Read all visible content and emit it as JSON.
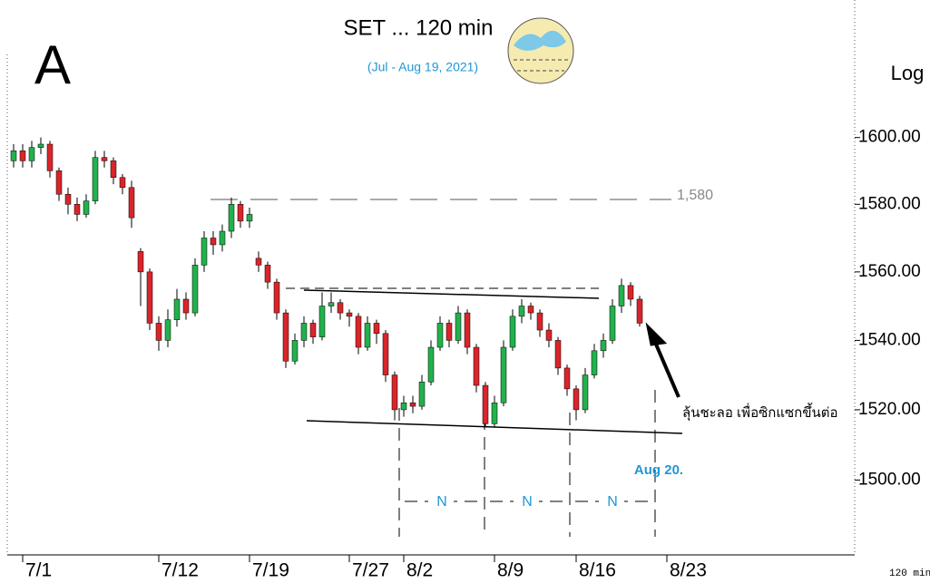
{
  "chart_data": {
    "type": "candlestick",
    "title": "SET ... 120 min",
    "subtitle": "(Jul - Aug 19, 2021)",
    "corner_label": "A",
    "scale_label": "Log",
    "level_label": "1,580",
    "note": "ลุ้นชะลอ เพื่อซิกแซกขึ้นต่อ",
    "date_note": "Aug 20.",
    "cycle_labels": [
      "N",
      "N",
      "N"
    ],
    "interval_label": "120 min",
    "log_scale": true,
    "up_color": "#22b14c",
    "down_color": "#d9252a",
    "ylim": [
      1479,
      1642
    ],
    "yticks": [
      {
        "value": 1500,
        "label": "1500.00"
      },
      {
        "value": 1520,
        "label": "1520.00"
      },
      {
        "value": 1540,
        "label": "1540.00"
      },
      {
        "value": 1560,
        "label": "1560.00"
      },
      {
        "value": 1580,
        "label": "1580.00"
      },
      {
        "value": 1600,
        "label": "1600.00"
      }
    ],
    "categories": [
      null,
      "7/1",
      null,
      null,
      null,
      null,
      null,
      null,
      null,
      null,
      null,
      null,
      null,
      null,
      null,
      null,
      "7/12",
      null,
      null,
      null,
      null,
      null,
      null,
      null,
      null,
      null,
      "7/19",
      null,
      null,
      null,
      null,
      null,
      null,
      null,
      null,
      null,
      null,
      "7/27",
      null,
      null,
      null,
      null,
      null,
      "8/2",
      null,
      null,
      null,
      null,
      null,
      null,
      null,
      null,
      null,
      "8/9",
      null,
      null,
      null,
      null,
      null,
      null,
      null,
      null,
      "8/16",
      null,
      null,
      null,
      null,
      null,
      null,
      null,
      null,
      null,
      "8/23",
      null
    ],
    "open": [
      1593,
      1596,
      1593,
      1597,
      1598,
      1590,
      1583,
      1580,
      1577,
      1581,
      1594,
      1593,
      1588,
      1585,
      1566,
      1560,
      1545,
      1540,
      1546,
      1552,
      1548,
      1562,
      1570,
      1568,
      1572,
      1580,
      1575,
      1564,
      1562,
      1557,
      1548,
      1534,
      1540,
      1545,
      1541,
      1550,
      1551,
      1548,
      1547,
      1538,
      1545,
      1542,
      1530,
      1520,
      1522,
      1521,
      1528,
      1538,
      1545,
      1540,
      1548,
      1538,
      1527,
      1516,
      1522,
      1538,
      1547,
      1550,
      1548,
      1543,
      1540,
      1532,
      1526,
      1520,
      1530,
      1537,
      1540,
      1550,
      1556,
      1552,
      null,
      null,
      null,
      null
    ],
    "high": [
      1598,
      1598,
      1599,
      1600,
      1599,
      1591,
      1585,
      1582,
      1583,
      1596,
      1596,
      1594,
      1589,
      1587,
      1567,
      1561,
      1547,
      1549,
      1555,
      1554,
      1564,
      1572,
      1572,
      1574,
      1582,
      1581,
      1579,
      1566,
      1563,
      1558,
      1549,
      1542,
      1547,
      1546,
      1554,
      1554,
      1552,
      1549,
      1548,
      1547,
      1546,
      1543,
      1531,
      1524,
      1524,
      1530,
      1540,
      1547,
      1546,
      1550,
      1549,
      1539,
      1528,
      1524,
      1540,
      1549,
      1552,
      1551,
      1549,
      1545,
      1541,
      1533,
      1527,
      1532,
      1539,
      1542,
      1552,
      1558,
      1557,
      1553,
      null,
      null,
      null,
      null
    ],
    "low": [
      1591,
      1591,
      1591,
      1595,
      1588,
      1581,
      1577,
      1575,
      1576,
      1580,
      1591,
      1586,
      1583,
      1573,
      1550,
      1543,
      1537,
      1538,
      1544,
      1546,
      1547,
      1560,
      1565,
      1566,
      1570,
      1573,
      1573,
      1560,
      1555,
      1546,
      1532,
      1533,
      1538,
      1539,
      1540,
      1548,
      1546,
      1544,
      1536,
      1537,
      1539,
      1528,
      1517,
      1518,
      1519,
      1520,
      1527,
      1537,
      1538,
      1539,
      1536,
      1525,
      1515,
      1515,
      1521,
      1537,
      1545,
      1546,
      1541,
      1538,
      1530,
      1524,
      1517,
      1519,
      1529,
      1535,
      1539,
      1548,
      1550,
      1544,
      null,
      null,
      null,
      null
    ],
    "close": [
      1596,
      1593,
      1597,
      1598,
      1590,
      1583,
      1580,
      1577,
      1581,
      1594,
      1593,
      1588,
      1585,
      1576,
      1560,
      1545,
      1540,
      1546,
      1552,
      1548,
      1562,
      1570,
      1568,
      1572,
      1580,
      1575,
      1577,
      1562,
      1557,
      1548,
      1534,
      1540,
      1545,
      1541,
      1550,
      1551,
      1548,
      1547,
      1538,
      1545,
      1542,
      1530,
      1520,
      1522,
      1521,
      1528,
      1538,
      1545,
      1540,
      1548,
      1538,
      1527,
      1516,
      1522,
      1538,
      1547,
      1550,
      1548,
      1543,
      1540,
      1532,
      1526,
      1520,
      1530,
      1537,
      1540,
      1550,
      1556,
      1552,
      1545,
      null,
      null,
      null,
      null
    ]
  }
}
